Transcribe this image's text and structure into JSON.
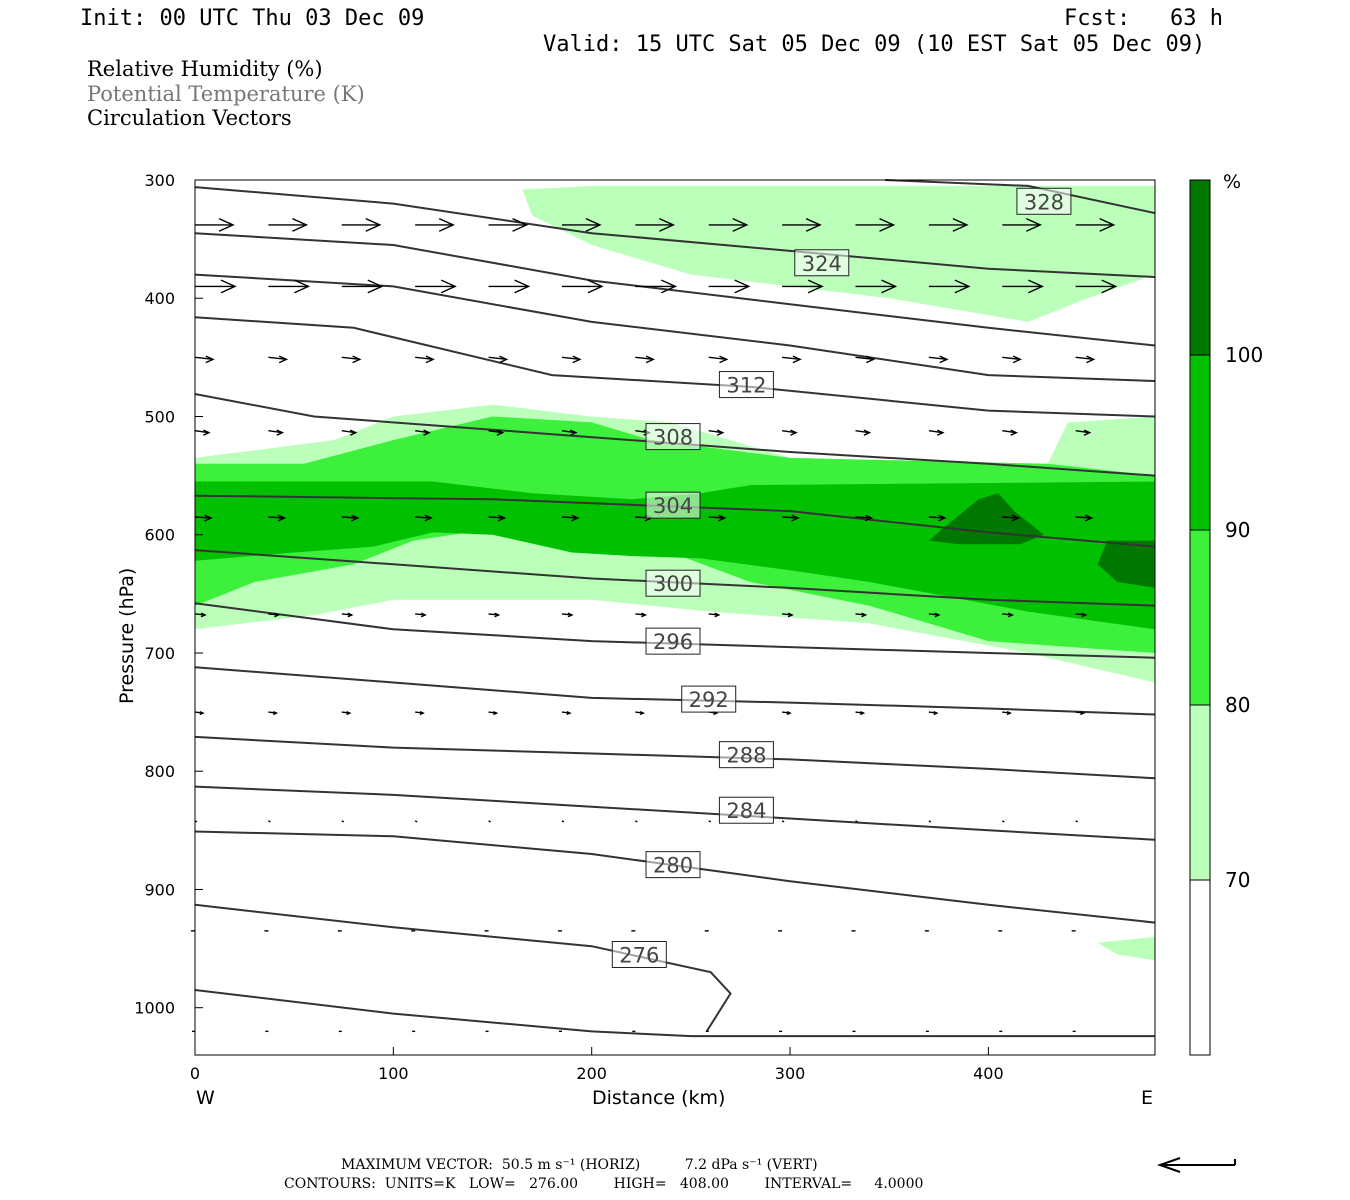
{
  "header": {
    "init": "Init: 00 UTC Thu 03 Dec 09",
    "fcst": "Fcst:   63 h",
    "valid": "Valid: 15 UTC Sat 05 Dec 09 (10 EST Sat 05 Dec 09)"
  },
  "legend": {
    "fields": [
      "Relative Humidity (%)",
      "Potential Temperature (K)",
      "Circulation Vectors"
    ]
  },
  "colors": {
    "rh_70": "#bbffbb",
    "rh_80": "#3cf03c",
    "rh_90": "#00c000",
    "rh_100": "#007800",
    "contour": "#333333",
    "contour_label_gray": "#444444"
  },
  "chart_data": {
    "type": "contour",
    "ylabel": "Pressure (hPa)",
    "xlabel": "Distance (km)",
    "x_ticks": [
      0,
      100,
      200,
      300,
      400
    ],
    "y_ticks": [
      300,
      400,
      500,
      600,
      700,
      800,
      900,
      1000
    ],
    "xlim": [
      0,
      484
    ],
    "ylim": [
      1040,
      300
    ],
    "y_inverted": true,
    "left_label": "W",
    "right_label": "E",
    "colorbar": {
      "unit": "%",
      "levels": [
        70,
        80,
        90,
        100
      ],
      "labels": [
        "70",
        "80",
        "90",
        "100"
      ]
    },
    "theta_contours": [
      {
        "label": "328",
        "points": [
          [
            348,
            300
          ],
          [
            420,
            305
          ],
          [
            484,
            328
          ]
        ],
        "label_at": [
          428,
          318
        ]
      },
      {
        "label": "324",
        "points": [
          [
            0,
            306
          ],
          [
            100,
            320
          ],
          [
            200,
            345
          ],
          [
            300,
            360
          ],
          [
            400,
            375
          ],
          [
            484,
            382
          ]
        ],
        "label_at": [
          316,
          370
        ]
      },
      {
        "label": "",
        "points": [
          [
            0,
            345
          ],
          [
            100,
            355
          ],
          [
            200,
            385
          ],
          [
            300,
            405
          ],
          [
            400,
            425
          ],
          [
            484,
            440
          ]
        ],
        "label_at": null
      },
      {
        "label": "",
        "points": [
          [
            0,
            380
          ],
          [
            100,
            390
          ],
          [
            200,
            420
          ],
          [
            300,
            440
          ],
          [
            400,
            465
          ],
          [
            484,
            470
          ]
        ],
        "label_at": null
      },
      {
        "label": "312",
        "points": [
          [
            0,
            416
          ],
          [
            80,
            425
          ],
          [
            180,
            465
          ],
          [
            280,
            475
          ],
          [
            400,
            495
          ],
          [
            484,
            500
          ]
        ],
        "label_at": [
          278,
          473
        ]
      },
      {
        "label": "308",
        "points": [
          [
            0,
            481
          ],
          [
            60,
            500
          ],
          [
            180,
            515
          ],
          [
            300,
            530
          ],
          [
            400,
            540
          ],
          [
            484,
            550
          ]
        ],
        "label_at": [
          241,
          517
        ]
      },
      {
        "label": "304",
        "points": [
          [
            0,
            567
          ],
          [
            150,
            570
          ],
          [
            300,
            580
          ],
          [
            400,
            598
          ],
          [
            484,
            610
          ]
        ],
        "label_at": [
          241,
          575
        ]
      },
      {
        "label": "300",
        "points": [
          [
            0,
            613
          ],
          [
            100,
            625
          ],
          [
            200,
            637
          ],
          [
            300,
            645
          ],
          [
            400,
            655
          ],
          [
            484,
            660
          ]
        ],
        "label_at": [
          241,
          641
        ]
      },
      {
        "label": "296",
        "points": [
          [
            0,
            658
          ],
          [
            100,
            680
          ],
          [
            200,
            690
          ],
          [
            300,
            695
          ],
          [
            400,
            700
          ],
          [
            484,
            704
          ]
        ],
        "label_at": [
          241,
          690
        ]
      },
      {
        "label": "292",
        "points": [
          [
            0,
            712
          ],
          [
            100,
            725
          ],
          [
            200,
            738
          ],
          [
            300,
            742
          ],
          [
            400,
            747
          ],
          [
            484,
            752
          ]
        ],
        "label_at": [
          259,
          739
        ]
      },
      {
        "label": "288",
        "points": [
          [
            0,
            771
          ],
          [
            100,
            780
          ],
          [
            200,
            785
          ],
          [
            300,
            790
          ],
          [
            400,
            798
          ],
          [
            484,
            806
          ]
        ],
        "label_at": [
          278,
          786
        ]
      },
      {
        "label": "284",
        "points": [
          [
            0,
            813
          ],
          [
            100,
            820
          ],
          [
            200,
            830
          ],
          [
            300,
            840
          ],
          [
            400,
            850
          ],
          [
            484,
            858
          ]
        ],
        "label_at": [
          278,
          833
        ]
      },
      {
        "label": "280",
        "points": [
          [
            0,
            851
          ],
          [
            100,
            855
          ],
          [
            200,
            870
          ],
          [
            300,
            893
          ],
          [
            400,
            913
          ],
          [
            484,
            928
          ]
        ],
        "label_at": [
          241,
          879
        ]
      },
      {
        "label": "276",
        "points": [
          [
            0,
            913
          ],
          [
            100,
            932
          ],
          [
            200,
            948
          ],
          [
            260,
            970
          ],
          [
            270,
            988
          ],
          [
            258,
            1020
          ]
        ],
        "label_at": [
          224,
          955
        ]
      },
      {
        "label": "",
        "points": [
          [
            0,
            985
          ],
          [
            100,
            1005
          ],
          [
            200,
            1020
          ],
          [
            250,
            1024
          ],
          [
            484,
            1024
          ]
        ],
        "label_at": null
      }
    ],
    "rh_regions": [
      {
        "level": 70,
        "points": [
          [
            165,
            308
          ],
          [
            200,
            305
          ],
          [
            250,
            305
          ],
          [
            300,
            305
          ],
          [
            400,
            305
          ],
          [
            484,
            305
          ],
          [
            484,
            500
          ],
          [
            440,
            505
          ],
          [
            430,
            540
          ],
          [
            300,
            535
          ],
          [
            240,
            505
          ],
          [
            200,
            500
          ],
          [
            150,
            490
          ],
          [
            100,
            500
          ],
          [
            70,
            520
          ],
          [
            0,
            535
          ],
          [
            0,
            680
          ],
          [
            60,
            668
          ],
          [
            100,
            655
          ],
          [
            200,
            655
          ],
          [
            260,
            665
          ],
          [
            340,
            675
          ],
          [
            420,
            700
          ],
          [
            484,
            725
          ],
          [
            484,
            380
          ],
          [
            450,
            400
          ],
          [
            420,
            420
          ],
          [
            350,
            400
          ],
          [
            300,
            390
          ],
          [
            250,
            380
          ],
          [
            200,
            355
          ],
          [
            170,
            330
          ]
        ]
      },
      {
        "level": 70,
        "points": [
          [
            455,
            945
          ],
          [
            484,
            940
          ],
          [
            484,
            960
          ],
          [
            465,
            955
          ]
        ]
      },
      {
        "level": 80,
        "points": [
          [
            0,
            540
          ],
          [
            55,
            540
          ],
          [
            100,
            520
          ],
          [
            150,
            500
          ],
          [
            200,
            505
          ],
          [
            230,
            520
          ],
          [
            300,
            535
          ],
          [
            430,
            540
          ],
          [
            484,
            550
          ],
          [
            484,
            700
          ],
          [
            400,
            690
          ],
          [
            340,
            660
          ],
          [
            280,
            640
          ],
          [
            240,
            615
          ],
          [
            200,
            610
          ],
          [
            150,
            595
          ],
          [
            110,
            605
          ],
          [
            80,
            625
          ],
          [
            30,
            640
          ],
          [
            0,
            660
          ]
        ]
      },
      {
        "level": 90,
        "points": [
          [
            0,
            555
          ],
          [
            60,
            555
          ],
          [
            120,
            555
          ],
          [
            170,
            565
          ],
          [
            220,
            570
          ],
          [
            255,
            565
          ],
          [
            280,
            558
          ],
          [
            484,
            555
          ],
          [
            484,
            680
          ],
          [
            420,
            665
          ],
          [
            340,
            640
          ],
          [
            300,
            630
          ],
          [
            255,
            620
          ],
          [
            220,
            618
          ],
          [
            190,
            615
          ],
          [
            150,
            600
          ],
          [
            120,
            598
          ],
          [
            90,
            610
          ],
          [
            50,
            615
          ],
          [
            0,
            622
          ]
        ]
      },
      {
        "level": 100,
        "points": [
          [
            370,
            605
          ],
          [
            382,
            588
          ],
          [
            395,
            570
          ],
          [
            405,
            565
          ],
          [
            413,
            580
          ],
          [
            428,
            600
          ],
          [
            416,
            608
          ],
          [
            385,
            608
          ]
        ]
      },
      {
        "level": 100,
        "points": [
          [
            460,
            605
          ],
          [
            484,
            605
          ],
          [
            484,
            645
          ],
          [
            465,
            640
          ],
          [
            455,
            625
          ]
        ]
      }
    ],
    "vector_rows": [
      {
        "p": 338,
        "xs": [
          0,
          37,
          74,
          111,
          148,
          185,
          222,
          259,
          296,
          333,
          370,
          407,
          444
        ],
        "len": 38,
        "dy": 0
      },
      {
        "p": 390,
        "xs": [
          0,
          37,
          74,
          111,
          148,
          185,
          222,
          259,
          296,
          333,
          370,
          407,
          444
        ],
        "len": 40,
        "dy": 0
      },
      {
        "p": 450,
        "xs": [
          0,
          37,
          74,
          111,
          148,
          185,
          222,
          259,
          296,
          333,
          370,
          407,
          444
        ],
        "len": 18,
        "dy": 2
      },
      {
        "p": 512,
        "xs": [
          0,
          37,
          74,
          111,
          148,
          185,
          222,
          259,
          296,
          333,
          370,
          407,
          444
        ],
        "len": 14,
        "dy": 2
      },
      {
        "p": 585,
        "xs": [
          0,
          37,
          74,
          111,
          148,
          185,
          222,
          259,
          296,
          333,
          370,
          407,
          444
        ],
        "len": 16,
        "dy": 1
      },
      {
        "p": 667,
        "xs": [
          0,
          37,
          74,
          111,
          148,
          185,
          222,
          259,
          296,
          333,
          370,
          407,
          444
        ],
        "len": 10,
        "dy": 1
      },
      {
        "p": 750,
        "xs": [
          0,
          37,
          74,
          111,
          148,
          185,
          222,
          259,
          296,
          333,
          370,
          407,
          444
        ],
        "len": 8,
        "dy": 1
      },
      {
        "p": 842,
        "xs": [
          0,
          37,
          74,
          111,
          148,
          185,
          222,
          259,
          296,
          333,
          370,
          407,
          444
        ],
        "len": 2,
        "dy": 1
      },
      {
        "p": 935,
        "xs": [
          0,
          37,
          74,
          111,
          148,
          185,
          222,
          259,
          296,
          333,
          370,
          407,
          444
        ],
        "len": -4,
        "dy": 0
      },
      {
        "p": 1020,
        "xs": [
          0,
          37,
          74,
          111,
          148,
          185,
          222,
          259,
          296,
          333,
          370,
          407,
          444
        ],
        "len": -3,
        "dy": 0
      }
    ]
  },
  "footer": {
    "max_vector": "MAXIMUM VECTOR:  50.5 m s⁻¹ (HORIZ)          7.2 dPa s⁻¹ (VERT)",
    "contours": "CONTOURS:  UNITS=K   LOW=   276.00        HIGH=   408.00        INTERVAL=     4.0000"
  }
}
